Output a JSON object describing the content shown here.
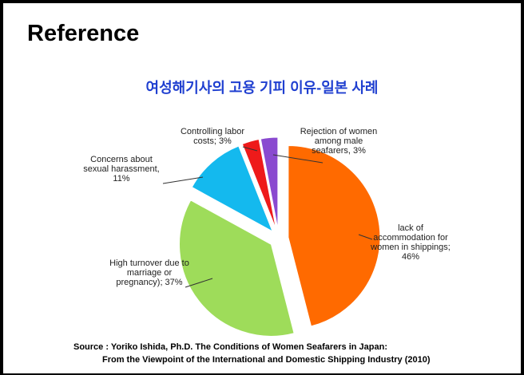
{
  "page_title": "Reference",
  "chart_data": {
    "type": "pie",
    "title": "여성해기사의 고용 기피 이유-일본 사례",
    "values": [
      46,
      37,
      11,
      3,
      3
    ],
    "value_labels": [
      "lack of accommodation for women in shippings; 46%",
      "High turnover due to marriage or pregnancy); 37%",
      "Concerns about sexual harassment, 11%",
      "Controlling labor costs; 3%",
      "Rejection of women among male seafarers, 3%"
    ],
    "colors": [
      "#ff6a00",
      "#9edc5a",
      "#14b9ee",
      "#ee1a1a",
      "#8a4ad0"
    ]
  },
  "source": [
    "Source : Yoriko Ishida, Ph.D. The Conditions of Women Seafarers in Japan:",
    "From the Viewpoint of the International and  Domestic Shipping Industry (2010)"
  ]
}
